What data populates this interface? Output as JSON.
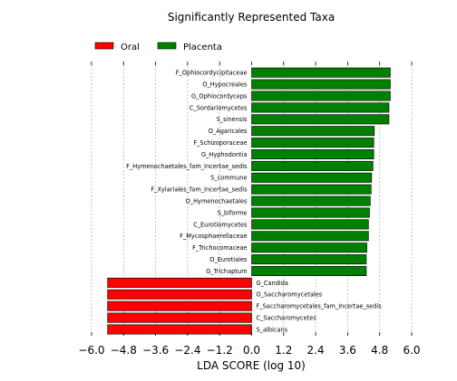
{
  "chart_data": {
    "type": "bar",
    "orientation": "horizontal",
    "title": "Significantly Represented Taxa",
    "xlabel": "LDA SCORE (log 10)",
    "ylabel": "",
    "xlim": [
      -6.0,
      6.0
    ],
    "xticks": [
      -6.0,
      -4.8,
      -3.6,
      -2.4,
      -1.2,
      0.0,
      1.2,
      2.4,
      3.6,
      4.8,
      6.0
    ],
    "xtick_labels": [
      "−6.0",
      "−4.8",
      "−3.6",
      "−2.4",
      "−1.2",
      "0.0",
      "1.2",
      "2.4",
      "3.6",
      "4.8",
      "6.0"
    ],
    "grid": "vertical-dotted",
    "legend_position": "top-left",
    "series": [
      {
        "name": "Oral",
        "color": "#ff0000",
        "categories": [
          "G_Candida",
          "O_Saccharomycetales",
          "F_Saccharomycetales_fam_Incertae_sedis",
          "C_Saccharomycetes",
          "S_albicans"
        ],
        "values": [
          -5.4,
          -5.4,
          -5.4,
          -5.4,
          -5.4
        ]
      },
      {
        "name": "Placenta",
        "color": "#008000",
        "categories": [
          "F_Ophiocordycipitaceae",
          "O_Hypocreales",
          "G_Ophiocordyceps",
          "C_Sordariomycetes",
          "S_sinensis",
          "O_Agaricales",
          "F_Schizoporaceae",
          "G_Hyphodontia",
          "F_Hymenochaetales_fam_Incertae_sedis",
          "S_commune",
          "F_Xylariales_fam_Incertae_sedis",
          "O_Hymenochaetales",
          "S_biforme",
          "C_Eurotiomycetes",
          "F_Mycosphaerellaceae",
          "F_Trichocomaceae",
          "O_Eurotiales",
          "G_Trichaptum"
        ],
        "values": [
          5.2,
          5.2,
          5.2,
          5.15,
          5.15,
          4.6,
          4.58,
          4.58,
          4.55,
          4.5,
          4.48,
          4.45,
          4.42,
          4.38,
          4.38,
          4.32,
          4.3,
          4.3
        ]
      }
    ]
  }
}
